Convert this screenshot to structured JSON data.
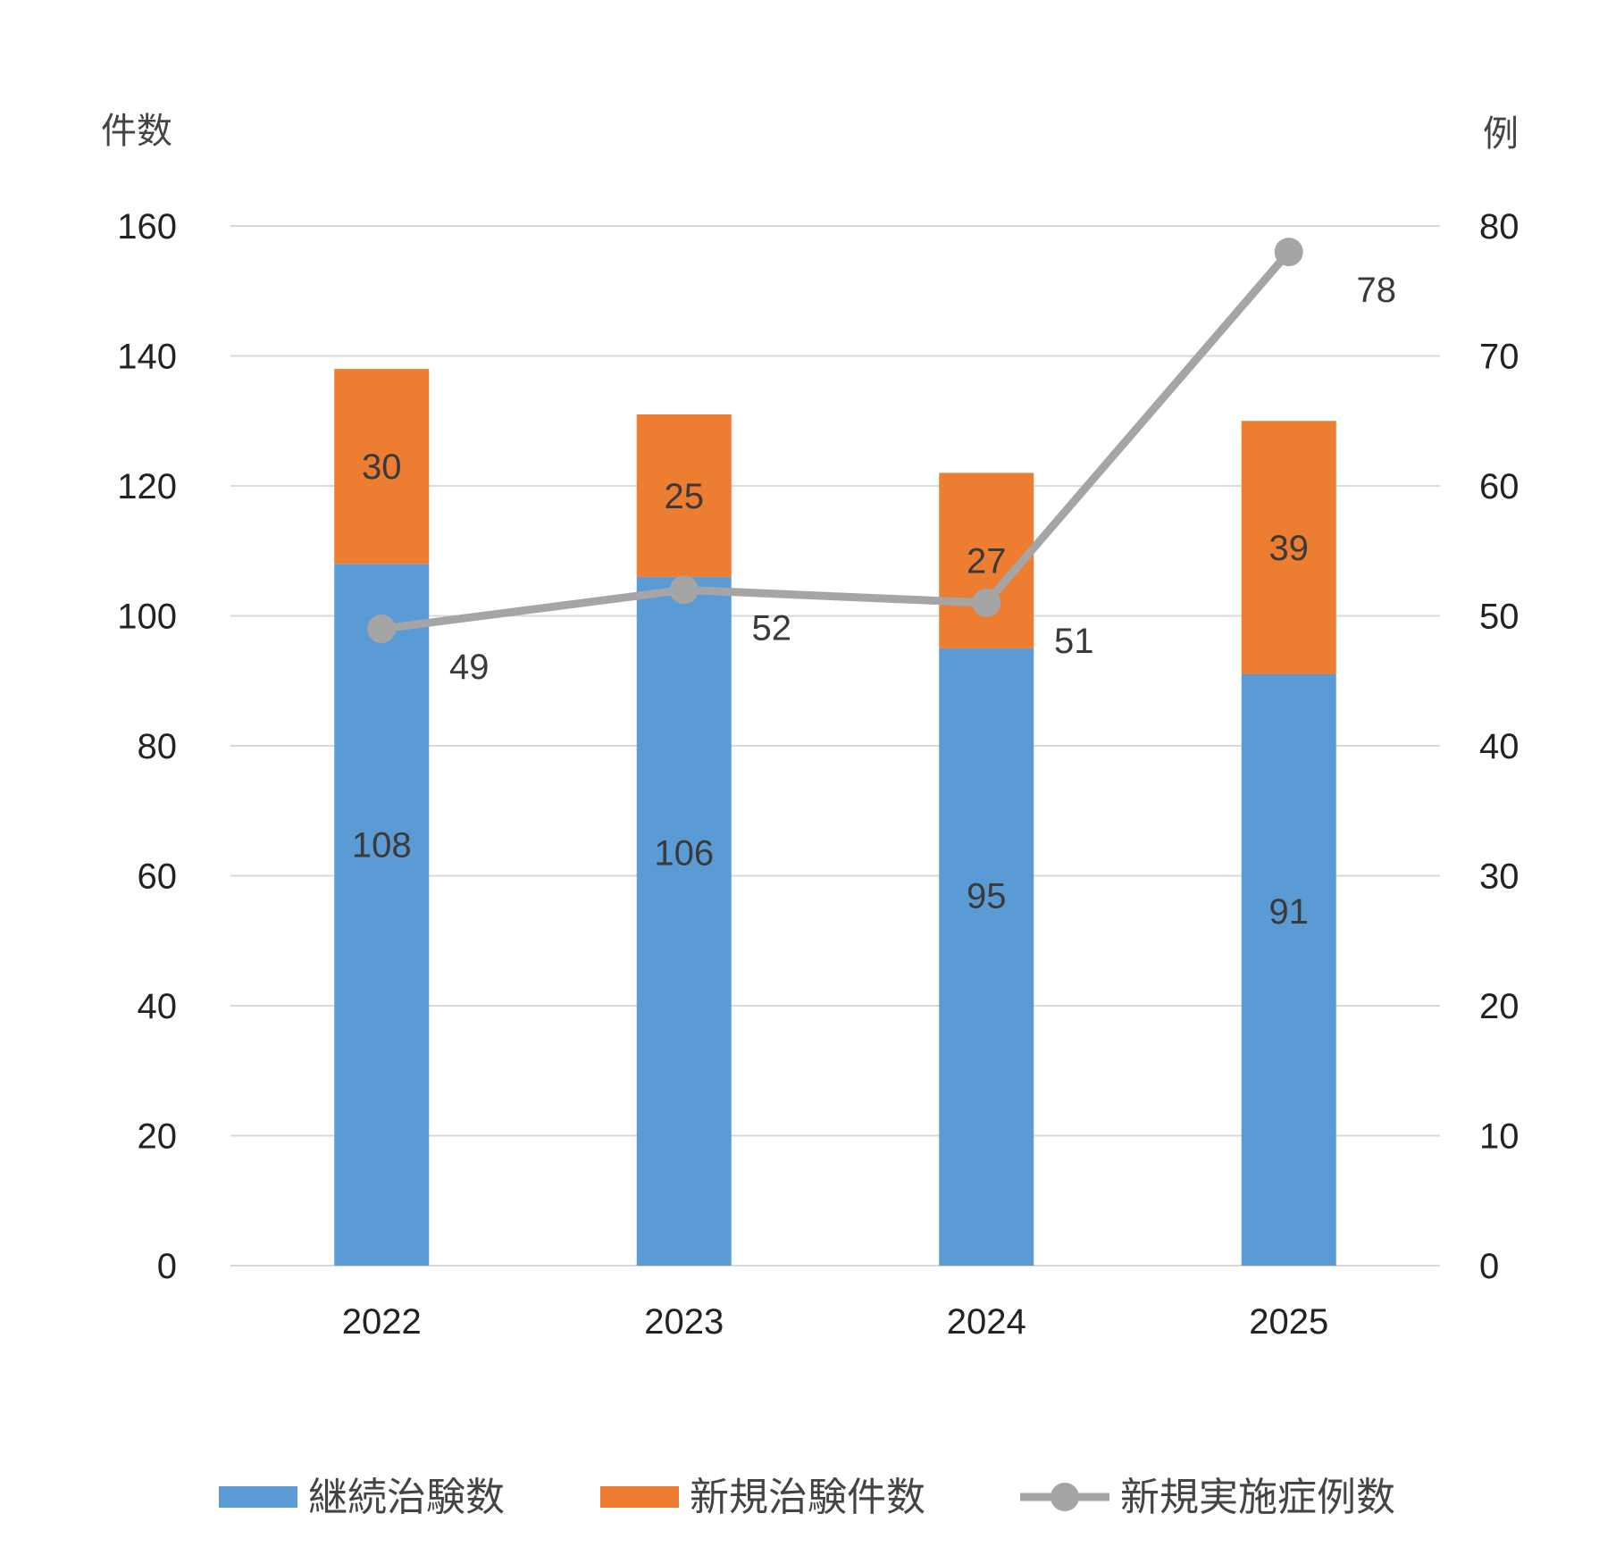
{
  "chart_data": {
    "type": "bar",
    "stacked": true,
    "categories": [
      "2022",
      "2023",
      "2024",
      "2025"
    ],
    "series": [
      {
        "name": "継続治験数",
        "kind": "bar",
        "axis": "left",
        "color": "#5b9bd5",
        "values": [
          108,
          106,
          95,
          91
        ]
      },
      {
        "name": "新規治験件数",
        "kind": "bar",
        "axis": "left",
        "color": "#ed7d31",
        "values": [
          30,
          25,
          27,
          39
        ]
      },
      {
        "name": "新規実施症例数",
        "kind": "line",
        "axis": "right",
        "color": "#a5a5a5",
        "values": [
          49,
          52,
          51,
          78
        ]
      }
    ],
    "ylabel_left": "件数",
    "ylabel_right": "例",
    "ylim_left": [
      0,
      160
    ],
    "ylim_right": [
      0,
      80
    ],
    "yticks_left": [
      "0",
      "20",
      "40",
      "60",
      "80",
      "100",
      "120",
      "140",
      "160"
    ],
    "yticks_right": [
      "0",
      "10",
      "20",
      "30",
      "40",
      "50",
      "60",
      "70",
      "80"
    ],
    "grid": true,
    "legend_position": "bottom"
  }
}
